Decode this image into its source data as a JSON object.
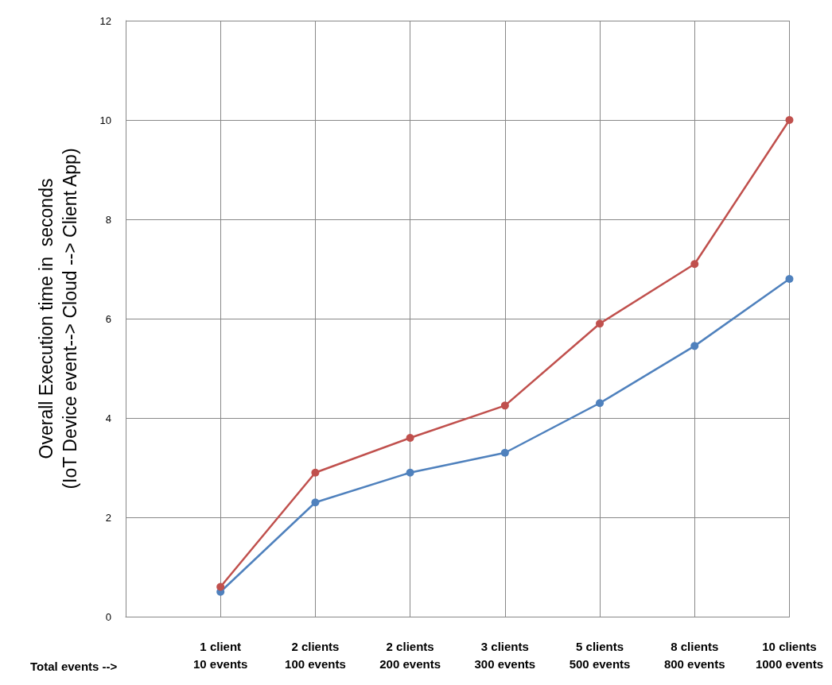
{
  "chart_data": {
    "type": "line",
    "ylabel": "Overall Execution time in  seconds\n(IoT Device event--> Cloud --> Client App)",
    "categories": [
      "1 client\n10 events",
      "2 clients\n100 events",
      "2 clients\n200 events",
      "3 clients\n300 events",
      "5 clients\n500 events",
      "8 clients\n800 events",
      "10 clients\n1000 events"
    ],
    "series": [
      {
        "color": "#4f81bd",
        "values": [
          0.5,
          2.3,
          2.9,
          3.3,
          4.3,
          5.45,
          6.8
        ]
      },
      {
        "color": "#c0504d",
        "values": [
          0.6,
          2.9,
          3.6,
          4.25,
          5.9,
          7.1,
          10
        ]
      }
    ],
    "ylim": [
      0,
      12
    ],
    "yticks": [
      0,
      2,
      4,
      6,
      8,
      10,
      12
    ],
    "grid": true,
    "marker": "circle",
    "line_style": "solid",
    "annotations": [
      "Total events -->"
    ]
  }
}
